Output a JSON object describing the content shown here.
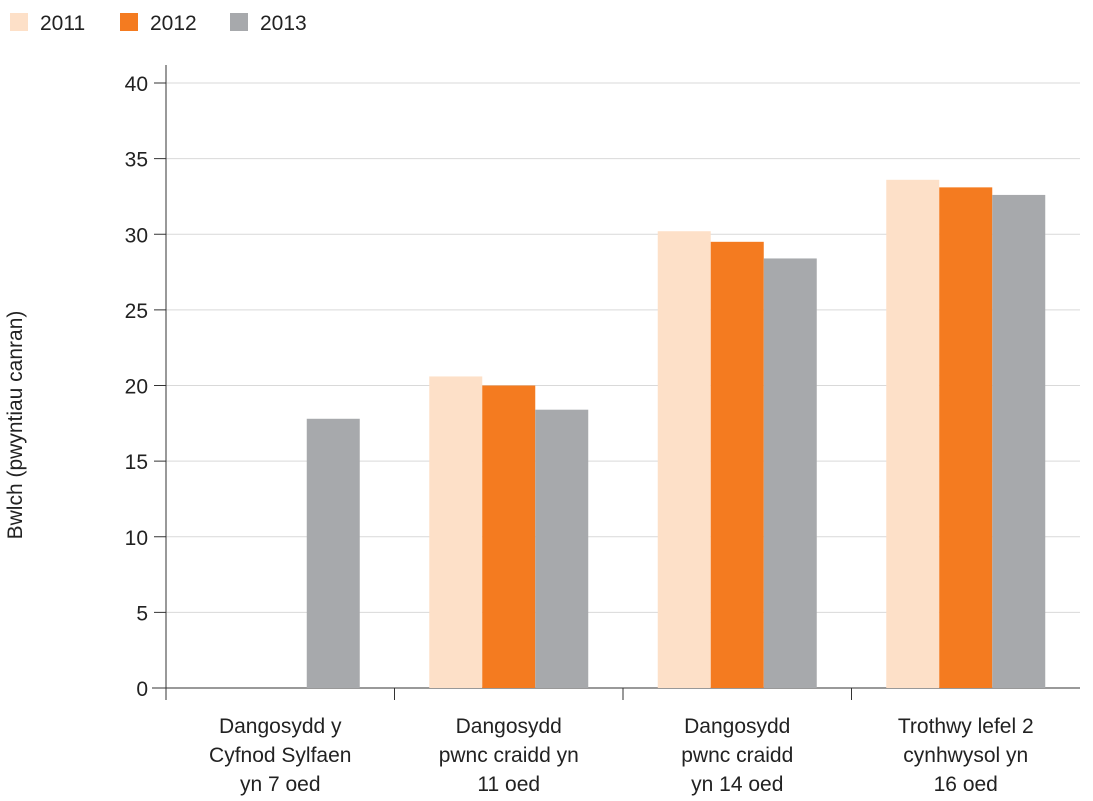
{
  "chart_data": {
    "type": "bar",
    "title": "",
    "xlabel": "",
    "ylabel": "Bwlch (pwyntiau canran)",
    "ylim": [
      0,
      40
    ],
    "yticks": [
      0,
      5,
      10,
      15,
      20,
      25,
      30,
      35,
      40
    ],
    "grid": true,
    "legend_position": "top-left",
    "categories": [
      [
        "Dangosydd y",
        "Cyfnod Sylfaen",
        "yn 7 oed"
      ],
      [
        "Dangosydd",
        "pwnc craidd yn",
        "11 oed"
      ],
      [
        "Dangosydd",
        "pwnc craidd",
        "yn 14 oed"
      ],
      [
        "Trothwy lefel 2",
        "cynhwysol  yn",
        "16 oed"
      ]
    ],
    "series": [
      {
        "name": "2011",
        "color": "#fde0c8",
        "values": [
          null,
          20.6,
          30.2,
          33.6
        ]
      },
      {
        "name": "2012",
        "color": "#f47b20",
        "values": [
          null,
          20.0,
          29.5,
          33.1
        ]
      },
      {
        "name": "2013",
        "color": "#a7a9ac",
        "values": [
          17.8,
          18.4,
          28.4,
          32.6
        ]
      }
    ]
  }
}
